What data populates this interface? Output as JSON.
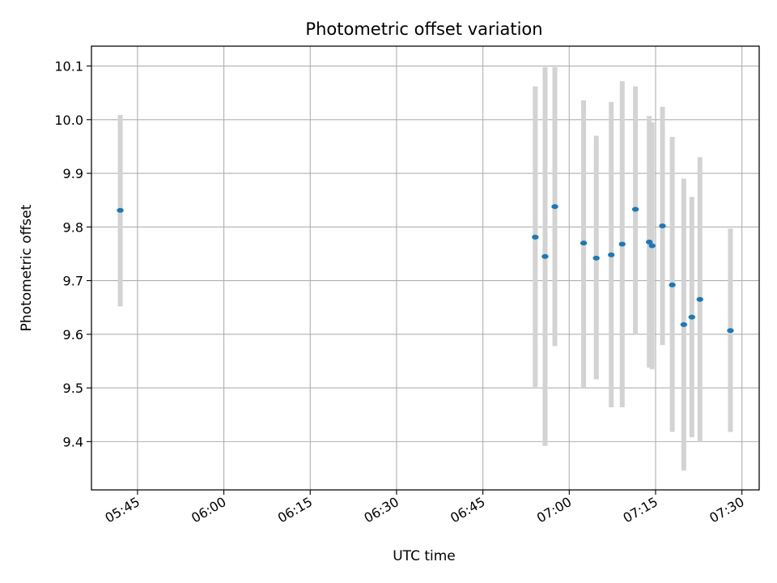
{
  "chart_data": {
    "type": "scatter",
    "title": "Photometric offset variation",
    "xlabel": "UTC time",
    "ylabel": "Photometric offset",
    "xlim": [
      "05:37",
      "07:33"
    ],
    "ylim": [
      9.31,
      10.137
    ],
    "x_ticks": [
      "05:45",
      "06:00",
      "06:15",
      "06:30",
      "06:45",
      "07:00",
      "07:15",
      "07:30"
    ],
    "y_ticks": [
      "9.4",
      "9.5",
      "9.6",
      "9.7",
      "9.8",
      "9.9",
      "10.0",
      "10.1"
    ],
    "grid": true,
    "legend": "none",
    "colors": {
      "points": "#1f77b4",
      "error_bars": "#d3d3d3",
      "grid": "#b0b0b0"
    },
    "points": [
      {
        "x": "05:42:00",
        "y": 9.831,
        "ylow": 9.652,
        "yhigh": 10.009
      },
      {
        "x": "06:54:06",
        "y": 9.781,
        "ylow": 9.502,
        "yhigh": 10.062
      },
      {
        "x": "06:55:48",
        "y": 9.745,
        "ylow": 9.392,
        "yhigh": 10.098
      },
      {
        "x": "06:57:30",
        "y": 9.838,
        "ylow": 9.578,
        "yhigh": 10.098
      },
      {
        "x": "07:02:30",
        "y": 9.77,
        "ylow": 9.5,
        "yhigh": 10.036
      },
      {
        "x": "07:04:42",
        "y": 9.742,
        "ylow": 9.516,
        "yhigh": 9.97
      },
      {
        "x": "07:07:18",
        "y": 9.748,
        "ylow": 9.464,
        "yhigh": 10.033
      },
      {
        "x": "07:09:12",
        "y": 9.768,
        "ylow": 9.464,
        "yhigh": 10.072
      },
      {
        "x": "07:11:30",
        "y": 9.833,
        "ylow": 9.6,
        "yhigh": 10.062
      },
      {
        "x": "07:13:54",
        "y": 9.772,
        "ylow": 9.538,
        "yhigh": 10.007
      },
      {
        "x": "07:14:24",
        "y": 9.765,
        "ylow": 9.535,
        "yhigh": 9.995
      },
      {
        "x": "07:16:12",
        "y": 9.802,
        "ylow": 9.58,
        "yhigh": 10.024
      },
      {
        "x": "07:17:54",
        "y": 9.692,
        "ylow": 9.418,
        "yhigh": 9.968
      },
      {
        "x": "07:19:54",
        "y": 9.618,
        "ylow": 9.346,
        "yhigh": 9.89
      },
      {
        "x": "07:21:18",
        "y": 9.632,
        "ylow": 9.408,
        "yhigh": 9.856
      },
      {
        "x": "07:22:42",
        "y": 9.665,
        "ylow": 9.4,
        "yhigh": 9.93
      },
      {
        "x": "07:28:00",
        "y": 9.607,
        "ylow": 9.418,
        "yhigh": 9.797
      }
    ]
  }
}
